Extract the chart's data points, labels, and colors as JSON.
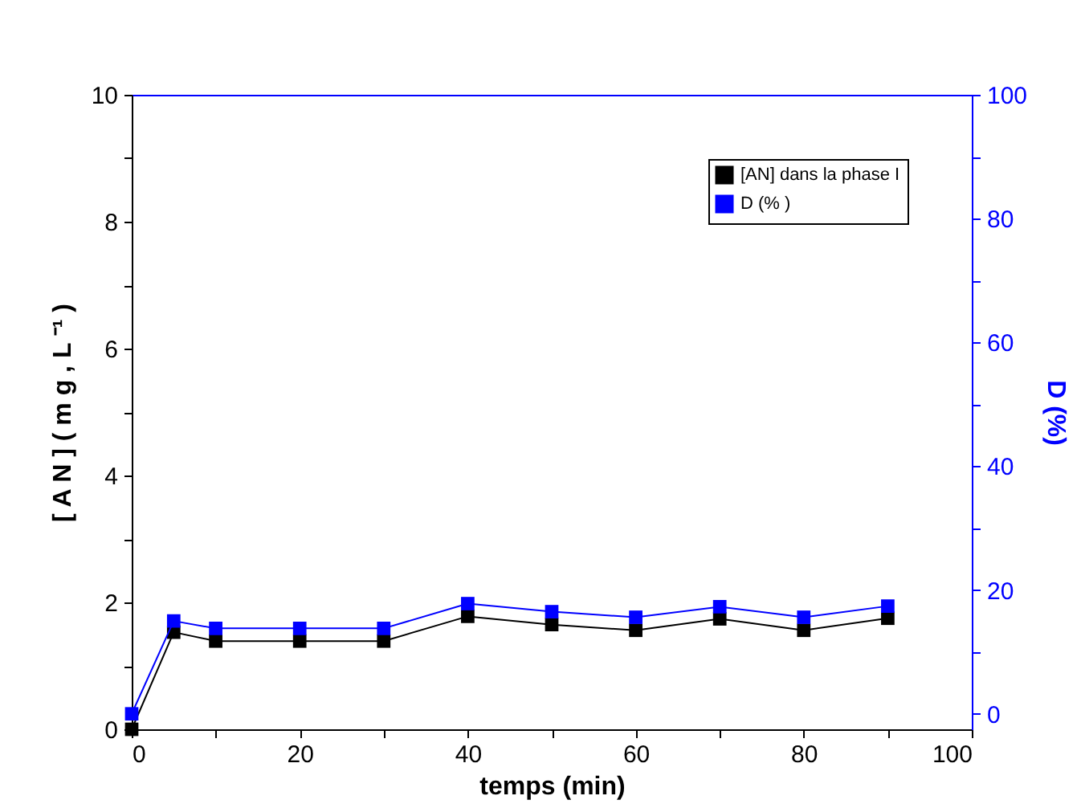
{
  "chart_data": {
    "type": "line",
    "xlabel": "temps (min)",
    "ylabel": "[ A N ] ( m g , L ⁻¹ )",
    "y2label": "D (%)",
    "x": [
      0,
      5,
      10,
      20,
      30,
      40,
      50,
      60,
      70,
      80,
      90
    ],
    "series": [
      {
        "name": "[AN] dans la phase I",
        "color": "#000000",
        "values": [
          0,
          1.53,
          1.39,
          1.39,
          1.39,
          1.78,
          1.65,
          1.56,
          1.74,
          1.56,
          1.75
        ]
      },
      {
        "name": "D (% )",
        "color": "#0000ff",
        "axis": "y2",
        "values": [
          0,
          15.0,
          13.8,
          13.8,
          13.8,
          17.8,
          16.5,
          15.6,
          17.3,
          15.6,
          17.4
        ]
      }
    ],
    "xlim": [
      0,
      100
    ],
    "xticks": [
      0,
      {
        "value": 10,
        "label": null
      },
      20,
      {
        "value": 30,
        "label": null
      },
      40,
      {
        "value": 50,
        "label": null
      },
      60,
      {
        "value": 70,
        "label": null
      },
      80,
      {
        "value": 90,
        "label": null
      },
      100
    ],
    "ylim": [
      0,
      10
    ],
    "yticks": [
      0,
      {
        "value": 1,
        "label": null
      },
      2,
      {
        "value": 3,
        "label": null
      },
      4,
      {
        "value": 5,
        "label": null
      },
      6,
      {
        "value": 7,
        "label": null
      },
      8,
      {
        "value": 9,
        "label": null
      },
      10
    ],
    "y2lim": [
      -2.5,
      100
    ],
    "y2ticks": [
      0,
      {
        "value": 10,
        "label": null
      },
      20,
      {
        "value": 30,
        "label": null
      },
      40,
      {
        "value": 50,
        "label": null
      },
      60,
      {
        "value": 70,
        "label": null
      },
      80,
      {
        "value": 90,
        "label": null
      },
      100
    ],
    "grid": false,
    "legend": "top right",
    "marker": "square",
    "line_style": "solid"
  }
}
